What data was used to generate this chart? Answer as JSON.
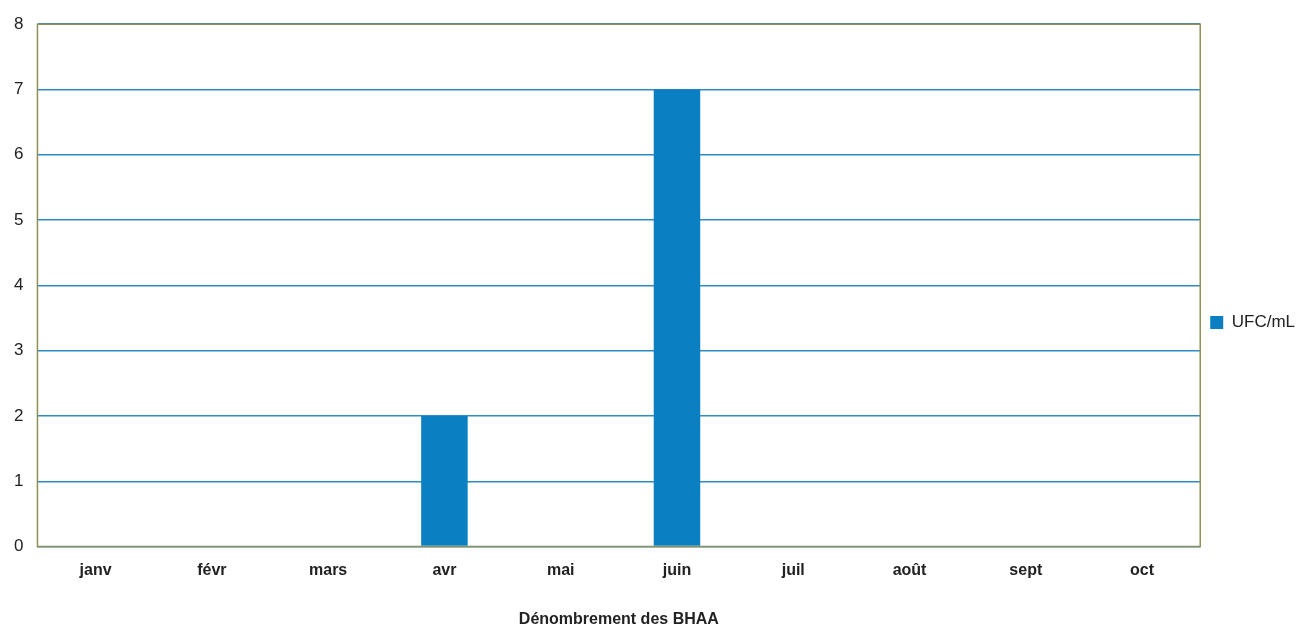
{
  "chart_data": {
    "type": "bar",
    "xlabel": "Dénombrement des BHAA",
    "categories": [
      "janv",
      "févr",
      "mars",
      "avr",
      "mai",
      "juin",
      "juil",
      "août",
      "sept",
      "oct"
    ],
    "series": [
      {
        "name": "UFC/mL",
        "color": "#0a80c2",
        "values": [
          0,
          0,
          0,
          2,
          0,
          7,
          0,
          0,
          0,
          0
        ]
      }
    ],
    "ylim": [
      0,
      8
    ],
    "yticks": [
      0,
      1,
      2,
      3,
      4,
      5,
      6,
      7,
      8
    ],
    "grid": "y",
    "legend": "right"
  }
}
